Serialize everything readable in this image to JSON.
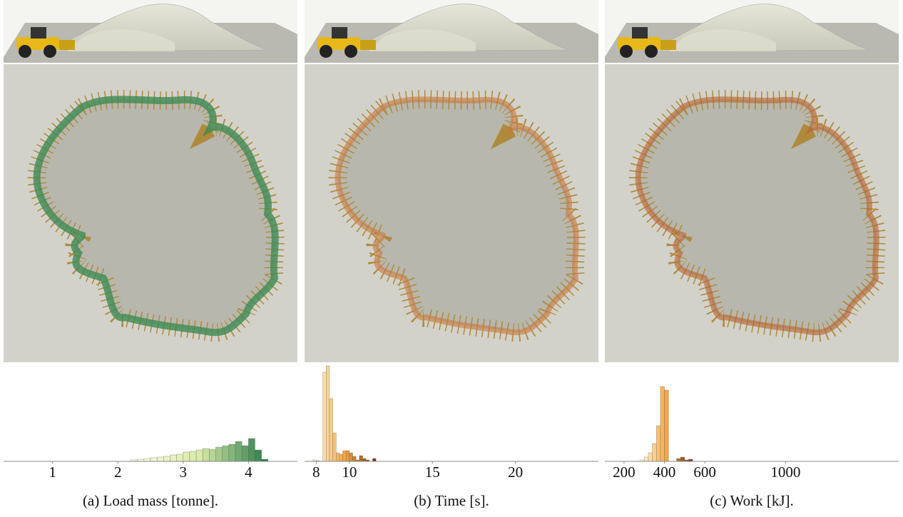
{
  "chart_data": [
    {
      "type": "histogram",
      "caption": "(a) Load mass [tonne].",
      "bins": [
        2.2,
        2.3,
        2.4,
        2.5,
        2.6,
        2.7,
        2.8,
        2.9,
        3.0,
        3.1,
        3.2,
        3.3,
        3.4,
        3.5,
        3.6,
        3.7,
        3.8,
        3.9,
        4.0,
        4.1,
        4.2,
        4.3
      ],
      "counts": [
        2,
        3,
        4,
        5,
        6,
        7,
        9,
        10,
        13,
        14,
        16,
        18,
        17,
        20,
        22,
        24,
        28,
        22,
        32,
        16,
        3
      ],
      "xlim": [
        0.25,
        4.75
      ],
      "xticks": [
        1,
        2,
        3,
        4
      ],
      "ylim": [
        0,
        134
      ],
      "colors": [
        "#fbfbe6",
        "#d8eaa6",
        "#2e7d4f"
      ]
    },
    {
      "type": "histogram",
      "caption": "(b) Time [s].",
      "bins": [
        7.8,
        8.0,
        8.2,
        8.4,
        8.6,
        8.8,
        9.0,
        9.2,
        9.4,
        9.6,
        9.8,
        10.0,
        10.2,
        10.4,
        10.6,
        10.8,
        11.0,
        11.2,
        11.4,
        11.6
      ],
      "counts": [
        2,
        1,
        0,
        125,
        134,
        88,
        40,
        12,
        10,
        15,
        15,
        12,
        7,
        2,
        8,
        4,
        2,
        0,
        4
      ],
      "xlim": [
        7.3,
        25
      ],
      "xticks": [
        8,
        10,
        15,
        20
      ],
      "ylim": [
        0,
        134
      ],
      "colors": [
        "#fdf9dc",
        "#f3a64a",
        "#7a3b1e"
      ]
    },
    {
      "type": "histogram",
      "caption": "(c) Work [kJ].",
      "bins": [
        280,
        300,
        320,
        340,
        360,
        380,
        400,
        420,
        440,
        460,
        480,
        500,
        520,
        540
      ],
      "counts": [
        2,
        6,
        12,
        25,
        50,
        105,
        100,
        0,
        0,
        4,
        6,
        2,
        3
      ],
      "xlim": [
        105,
        1560
      ],
      "xticks": [
        200,
        400,
        600,
        1000
      ],
      "ylim": [
        0,
        134
      ],
      "colors": [
        "#fdf9dc",
        "#f3a64a",
        "#7a3b1e"
      ]
    }
  ]
}
